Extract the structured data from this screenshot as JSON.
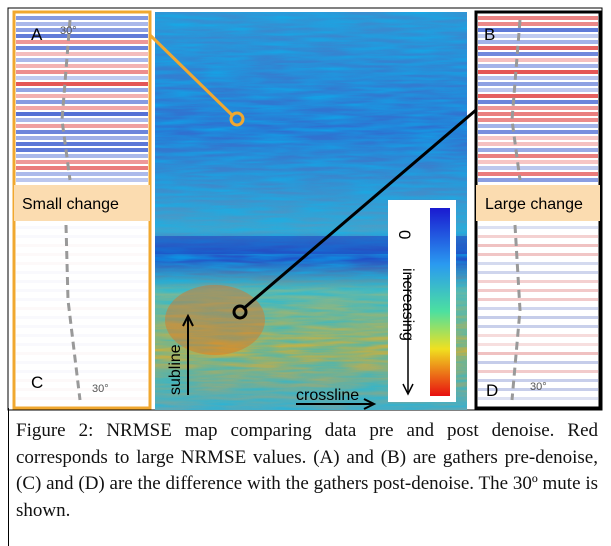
{
  "figure": {
    "panels": [
      {
        "label": "A",
        "angle": "30°"
      },
      {
        "label": "B",
        "angle": "30°"
      },
      {
        "label": "C",
        "angle": "30°"
      },
      {
        "label": "D",
        "angle": "30°"
      }
    ],
    "small_change": "Small change",
    "large_change": "Large change",
    "colorbar": {
      "min": "0",
      "label": "increasing"
    },
    "axes": {
      "y": "subline",
      "x": "crossline"
    }
  },
  "caption": "Figure 2:  NRMSE map comparing data pre and post denoise. Red corresponds to large NRMSE values. (A) and (B) are gathers pre-denoise, (C) and (D) are the difference with the gathers post-denoise. The 30º mute is shown."
}
